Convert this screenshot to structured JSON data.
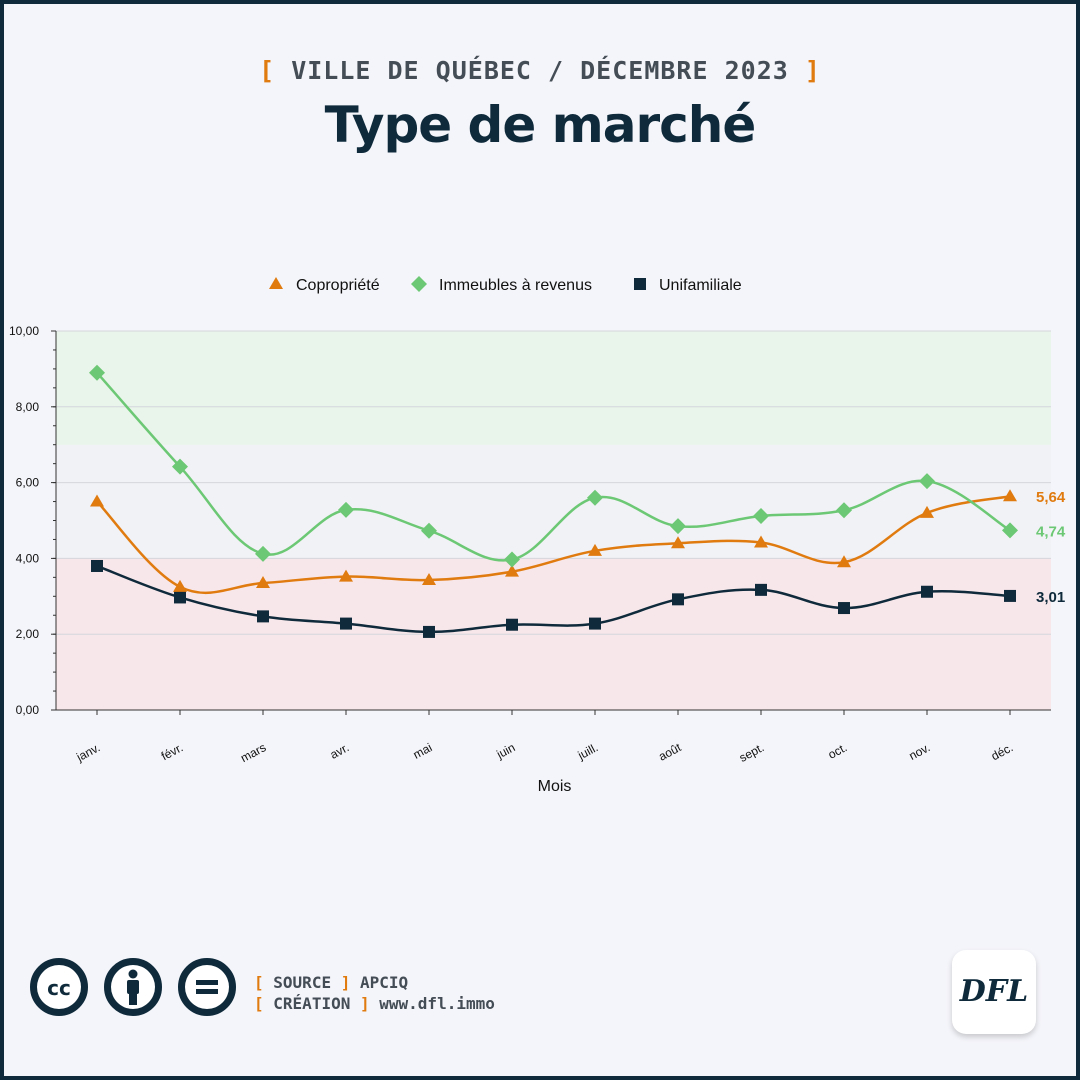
{
  "header": {
    "subtitle": "VILLE DE QUÉBEC / DÉCEMBRE 2023",
    "title": "Type de marché"
  },
  "footer": {
    "source_label": "SOURCE",
    "source_value": "APCIQ",
    "creation_label": "CRÉATION",
    "creation_value": "www.dfl.immo",
    "logo_text": "DFL",
    "license_icons": [
      "cc-icon",
      "attribution-icon",
      "no-derivatives-icon"
    ],
    "cc_text": "cc"
  },
  "colors": {
    "accent": "#e07b10",
    "navy": "#0e2a3b",
    "green": "#6cc874",
    "band_green": "#e9f4ea",
    "band_gray": "#f1f2f5",
    "band_red": "#f8e7ea"
  },
  "chart_data": {
    "type": "line",
    "xlabel": "Mois",
    "ylabel": "",
    "ylim": [
      0,
      10
    ],
    "yticks": [
      "0,00",
      "2,00",
      "4,00",
      "6,00",
      "8,00",
      "10,00"
    ],
    "categories": [
      "janv.",
      "févr.",
      "mars",
      "avr.",
      "mai",
      "juin",
      "juill.",
      "août",
      "sept.",
      "oct.",
      "nov.",
      "déc."
    ],
    "bands": [
      {
        "from": 0,
        "to": 4,
        "color": "#f8e7ea"
      },
      {
        "from": 4,
        "to": 7,
        "color": "#f1f2f5"
      },
      {
        "from": 7,
        "to": 10,
        "color": "#e9f4ea"
      }
    ],
    "legend_position": "top",
    "grid": true,
    "series": [
      {
        "name": "Copropriété",
        "marker": "triangle",
        "color": "#e07b10",
        "values": [
          5.5,
          3.25,
          3.35,
          3.52,
          3.43,
          3.65,
          4.2,
          4.4,
          4.42,
          3.9,
          5.2,
          5.64
        ],
        "end_label": "5,64"
      },
      {
        "name": "Immeubles à revenus",
        "marker": "diamond",
        "color": "#6cc874",
        "values": [
          8.9,
          6.42,
          4.12,
          5.28,
          4.73,
          3.97,
          5.6,
          4.85,
          5.12,
          5.27,
          6.04,
          4.74
        ],
        "end_label": "4,74"
      },
      {
        "name": "Unifamiliale",
        "marker": "square",
        "color": "#0e2a3b",
        "values": [
          3.8,
          2.97,
          2.47,
          2.28,
          2.06,
          2.25,
          2.28,
          2.92,
          3.17,
          2.69,
          3.12,
          3.01
        ],
        "end_label": "3,01"
      }
    ]
  }
}
